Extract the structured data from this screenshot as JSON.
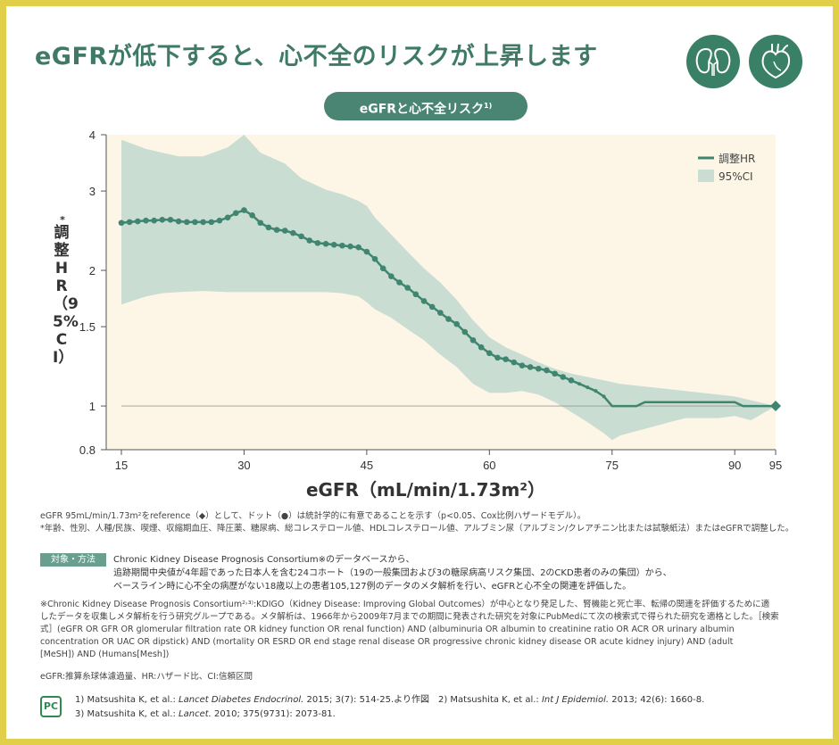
{
  "page": {
    "title": "eGFRが低下すると、心不全のリスクが上昇します",
    "icons": [
      "kidney-icon",
      "heart-icon"
    ],
    "subtitle": "eGFRと心不全リスク",
    "subtitle_ref": "1)",
    "colors": {
      "accent": "#3f7a67",
      "frame": "#e1cf4a",
      "ci_band": "#c9ddd2",
      "line": "#3f8570",
      "plot_bg": "#fdf6e6"
    }
  },
  "chart_data": {
    "type": "line",
    "xlabel": "eGFR（mL/min/1.73m²）",
    "ylabel_mark": "*",
    "ylabel": "調整HR（95%CI）",
    "xticks": [
      15,
      30,
      45,
      60,
      75,
      90,
      95
    ],
    "yticks": [
      0.8,
      1,
      1.5,
      2,
      3,
      4
    ],
    "ytick_labels": [
      "0.8",
      "1",
      "1.5",
      "2",
      "3",
      "4"
    ],
    "xlim": [
      15,
      95
    ],
    "ylim": [
      0.8,
      4
    ],
    "yscale": "log",
    "reference_line": 1,
    "legend": {
      "position": "top-right",
      "items": [
        "調整HR",
        "95%CI"
      ]
    },
    "series": [
      {
        "name": "調整HR",
        "x": [
          15,
          16,
          17,
          18,
          19,
          20,
          21,
          22,
          23,
          24,
          25,
          26,
          27,
          28,
          29,
          30,
          31,
          32,
          33,
          34,
          35,
          36,
          37,
          38,
          39,
          40,
          41,
          42,
          43,
          44,
          45,
          46,
          47,
          48,
          49,
          50,
          51,
          52,
          53,
          54,
          55,
          56,
          57,
          58,
          59,
          60,
          61,
          62,
          63,
          64,
          65,
          66,
          67,
          68,
          69,
          70,
          71,
          72,
          73,
          74,
          75,
          76,
          77,
          78,
          79,
          80,
          81,
          82,
          83,
          84,
          85,
          86,
          87,
          88,
          89,
          90,
          91,
          92,
          93,
          94,
          95
        ],
        "y": [
          2.55,
          2.56,
          2.57,
          2.58,
          2.58,
          2.59,
          2.59,
          2.57,
          2.56,
          2.56,
          2.56,
          2.56,
          2.58,
          2.62,
          2.68,
          2.72,
          2.65,
          2.55,
          2.49,
          2.46,
          2.45,
          2.42,
          2.38,
          2.33,
          2.3,
          2.29,
          2.28,
          2.27,
          2.26,
          2.25,
          2.2,
          2.12,
          2.02,
          1.94,
          1.88,
          1.83,
          1.77,
          1.71,
          1.66,
          1.61,
          1.56,
          1.52,
          1.46,
          1.4,
          1.35,
          1.31,
          1.28,
          1.27,
          1.25,
          1.23,
          1.22,
          1.21,
          1.2,
          1.18,
          1.16,
          1.14,
          1.12,
          1.1,
          1.08,
          1.05,
          1.0,
          1.0,
          1.0,
          1.0,
          1.02,
          1.02,
          1.02,
          1.02,
          1.02,
          1.02,
          1.02,
          1.02,
          1.02,
          1.02,
          1.02,
          1.02,
          1.0,
          1.0,
          1.0,
          1.0,
          1.0
        ]
      },
      {
        "name": "95%CI",
        "x": [
          15,
          18,
          20,
          22,
          25,
          28,
          30,
          32,
          35,
          37,
          40,
          42,
          44,
          45,
          46,
          48,
          50,
          52,
          54,
          56,
          58,
          60,
          62,
          64,
          66,
          68,
          70,
          72,
          74,
          75,
          76,
          78,
          80,
          82,
          84,
          86,
          88,
          90,
          92,
          95
        ],
        "lower": [
          1.68,
          1.75,
          1.78,
          1.79,
          1.8,
          1.79,
          1.79,
          1.79,
          1.79,
          1.79,
          1.79,
          1.78,
          1.75,
          1.7,
          1.64,
          1.57,
          1.48,
          1.4,
          1.3,
          1.22,
          1.12,
          1.07,
          1.07,
          1.08,
          1.06,
          1.02,
          0.97,
          0.92,
          0.87,
          0.84,
          0.86,
          0.88,
          0.9,
          0.92,
          0.94,
          0.94,
          0.94,
          0.95,
          0.93,
          1.0
        ],
        "upper": [
          3.9,
          3.72,
          3.65,
          3.58,
          3.58,
          3.75,
          4.0,
          3.65,
          3.45,
          3.2,
          3.02,
          2.95,
          2.85,
          2.78,
          2.62,
          2.4,
          2.2,
          2.02,
          1.88,
          1.72,
          1.55,
          1.42,
          1.35,
          1.3,
          1.25,
          1.21,
          1.18,
          1.16,
          1.14,
          1.13,
          1.12,
          1.11,
          1.1,
          1.09,
          1.08,
          1.07,
          1.06,
          1.05,
          1.03,
          1.0
        ]
      }
    ]
  },
  "notes": {
    "note1": "eGFR 95mL/min/1.73m²をreference（◆）として、ドット（●）は統計学的に有意であることを示す（p<0.05、Cox比例ハザードモデル）。",
    "note2": "*年齢、性別、人種/民族、喫煙、収縮期血圧、降圧薬、糖尿病、総コレステロール値、HDLコレステロール値、アルブミン尿（アルブミン/クレアチニン比または試験紙法）またはeGFRで調整した。",
    "method_tag": "対象・方法",
    "method1": "Chronic Kidney Disease Prognosis Consortium※のデータベースから、",
    "method2": "追跡期間中央値が4年超であった日本人を含む24コホート（19の一般集団および3の糖尿病高リスク集団、2のCKD患者のみの集団）から、",
    "method3": "ベースライン時に心不全の病歴がない18歳以上の患者105,127例のデータのメタ解析を行い、eGFRと心不全の関連を評価した。",
    "ckd1": "※Chronic Kidney Disease Prognosis Consortium²˒³⁾:KDIGO（Kidney Disease: Improving Global Outcomes）が中心となり発足した、腎機能と死亡率、転帰の関連を評価するために適",
    "ckd2": "したデータを収集しメタ解析を行う研究グループである。メタ解析は、1966年から2009年7月までの期間に発表された研究を対象にPubMedにて次の検索式で得られた研究を適格とした。［検索",
    "ckd3": "式］(eGFR OR GFR OR glomerular filtration rate OR kidney function OR renal function) AND (albuminuria OR albumin to creatinine ratio OR ACR OR urinary albumin",
    "ckd4": "concentration OR UAC OR dipstick) AND (mortality OR ESRD OR end stage renal disease OR progressive chronic kidney disease OR acute kidney injury) AND (adult",
    "ckd5": "[MeSH]) AND (Humans[Mesh])",
    "abbr": "eGFR:推算糸球体濾過量、HR:ハザード比、CI:信頼区間",
    "pc_mark": "PC",
    "ref1a": "1) Matsushita K, et al.: ",
    "ref1b": "Lancet Diabetes Endocrinol.",
    "ref1c": " 2015; 3(7): 514-25.より作図　2) Matsushita K, et al.: ",
    "ref1d": "Int J Epidemiol.",
    "ref1e": " 2013; 42(6): 1660-8.",
    "ref2a": "3) Matsushita K, et al.: ",
    "ref2b": "Lancet.",
    "ref2c": " 2010; 375(9731): 2073-81."
  }
}
